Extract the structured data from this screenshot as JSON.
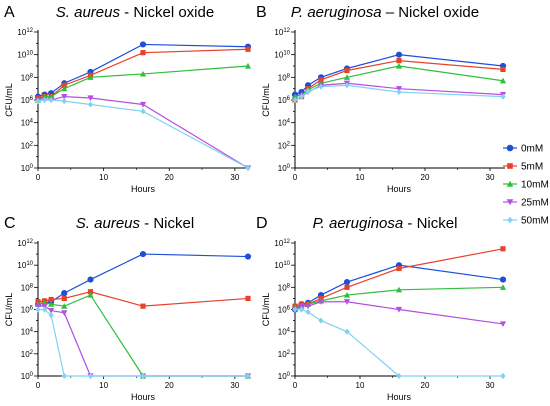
{
  "colors": {
    "0mM": "#1f4fd8",
    "5mM": "#e8412c",
    "10mM": "#2fbf3a",
    "25mM": "#b44fe0",
    "50mM": "#7fd3f0"
  },
  "legend": {
    "position": "right",
    "items": [
      {
        "label": "0mM",
        "marker": "circle"
      },
      {
        "label": "5mM",
        "marker": "square"
      },
      {
        "label": "10mM",
        "marker": "triangle-up"
      },
      {
        "label": "25mM",
        "marker": "triangle-down"
      },
      {
        "label": "50mM",
        "marker": "diamond"
      }
    ]
  },
  "y_tick_labels": {
    "exponents": [
      "0",
      "2",
      "4",
      "6",
      "8",
      "10",
      "12"
    ],
    "base": "10"
  },
  "x_tick_labels": [
    "0",
    "10",
    "20",
    "30"
  ],
  "chart_data": [
    {
      "type": "line",
      "panel_letter": "A",
      "title_organism": "S. aureus",
      "title_rest": " - Nickel oxide",
      "xlabel": "Hours",
      "ylabel": "CFU/mL",
      "yscale": "log",
      "ylim": [
        1,
        1000000000000.0
      ],
      "xlim": [
        0,
        32
      ],
      "x": [
        0,
        1,
        2,
        4,
        8,
        16,
        32
      ],
      "series": [
        {
          "name": "0mM",
          "values": [
            2000000.0,
            3000000.0,
            4000000.0,
            30000000.0,
            300000000.0,
            80000000000.0,
            50000000000.0
          ]
        },
        {
          "name": "5mM",
          "values": [
            1500000.0,
            2000000.0,
            2000000.0,
            20000000.0,
            150000000.0,
            15000000000.0,
            30000000000.0
          ]
        },
        {
          "name": "10mM",
          "values": [
            1000000.0,
            2000000.0,
            2000000.0,
            10000000.0,
            100000000.0,
            200000000.0,
            1000000000.0
          ]
        },
        {
          "name": "25mM",
          "values": [
            1000000.0,
            1000000.0,
            1000000.0,
            2000000.0,
            1500000.0,
            400000.0,
            1
          ]
        },
        {
          "name": "50mM",
          "values": [
            800000.0,
            1000000.0,
            1000000.0,
            800000.0,
            400000.0,
            100000.0,
            1
          ]
        }
      ]
    },
    {
      "type": "line",
      "panel_letter": "B",
      "title_organism": "P. aeruginosa",
      "title_rest": " – Nickel oxide",
      "xlabel": "Hours",
      "ylabel": "CFU/mL",
      "yscale": "log",
      "ylim": [
        1,
        1000000000000.0
      ],
      "xlim": [
        0,
        32
      ],
      "x": [
        0,
        1,
        2,
        4,
        8,
        16,
        32
      ],
      "series": [
        {
          "name": "0mM",
          "values": [
            3000000.0,
            5000000.0,
            20000000.0,
            100000000.0,
            600000000.0,
            10000000000.0,
            1000000000.0
          ]
        },
        {
          "name": "5mM",
          "values": [
            1000000.0,
            2000000.0,
            10000000.0,
            60000000.0,
            400000000.0,
            3000000000.0,
            500000000.0
          ]
        },
        {
          "name": "10mM",
          "values": [
            2000000.0,
            3000000.0,
            8000000.0,
            30000000.0,
            100000000.0,
            1000000000.0,
            50000000.0
          ]
        },
        {
          "name": "25mM",
          "values": [
            1000000.0,
            2000000.0,
            5000000.0,
            20000000.0,
            30000000.0,
            10000000.0,
            3000000.0
          ]
        },
        {
          "name": "50mM",
          "values": [
            1000000.0,
            2000000.0,
            6000000.0,
            15000000.0,
            20000000.0,
            5000000.0,
            2000000.0
          ]
        }
      ]
    },
    {
      "type": "line",
      "panel_letter": "C",
      "title_organism": "S. aureus",
      "title_rest": " - Nickel",
      "xlabel": "Hours",
      "ylabel": "CFU/mL",
      "yscale": "log",
      "ylim": [
        1,
        1000000000000.0
      ],
      "xlim": [
        0,
        32
      ],
      "x": [
        0,
        1,
        2,
        4,
        8,
        16,
        32
      ],
      "series": [
        {
          "name": "0mM",
          "values": [
            3000000.0,
            4000000.0,
            5000000.0,
            30000000.0,
            500000000.0,
            100000000000.0,
            60000000000.0
          ]
        },
        {
          "name": "5mM",
          "values": [
            5000000.0,
            6000000.0,
            8000000.0,
            10000000.0,
            40000000.0,
            2000000.0,
            10000000.0
          ]
        },
        {
          "name": "10mM",
          "values": [
            3000000.0,
            4000000.0,
            3000000.0,
            2000000.0,
            20000000.0,
            1,
            1
          ]
        },
        {
          "name": "25mM",
          "values": [
            2000000.0,
            2000000.0,
            800000.0,
            500000.0,
            1,
            1,
            1
          ]
        },
        {
          "name": "50mM",
          "values": [
            1000000.0,
            1000000.0,
            300000.0,
            1,
            1,
            1,
            1
          ]
        }
      ]
    },
    {
      "type": "line",
      "panel_letter": "D",
      "title_organism": "P. aeruginosa",
      "title_rest": " - Nickel",
      "xlabel": "Hours",
      "ylabel": "CFU/mL",
      "yscale": "log",
      "ylim": [
        1,
        1000000000000.0
      ],
      "xlim": [
        0,
        32
      ],
      "x": [
        0,
        1,
        2,
        4,
        8,
        16,
        32
      ],
      "series": [
        {
          "name": "0mM",
          "values": [
            1000000.0,
            3000000.0,
            4000000.0,
            20000000.0,
            300000000.0,
            10000000000.0,
            500000000.0
          ]
        },
        {
          "name": "5mM",
          "values": [
            2000000.0,
            3000000.0,
            3000000.0,
            10000000.0,
            100000000.0,
            5000000000.0,
            300000000000.0
          ]
        },
        {
          "name": "10mM",
          "values": [
            1500000.0,
            2000000.0,
            3000000.0,
            6000000.0,
            20000000.0,
            60000000.0,
            100000000.0
          ]
        },
        {
          "name": "25mM",
          "values": [
            1000000.0,
            2000000.0,
            2000000.0,
            5000000.0,
            5000000.0,
            1000000.0,
            50000.0
          ]
        },
        {
          "name": "50mM",
          "values": [
            1000000.0,
            1000000.0,
            600000.0,
            100000.0,
            10000.0,
            1,
            1
          ]
        }
      ]
    }
  ]
}
